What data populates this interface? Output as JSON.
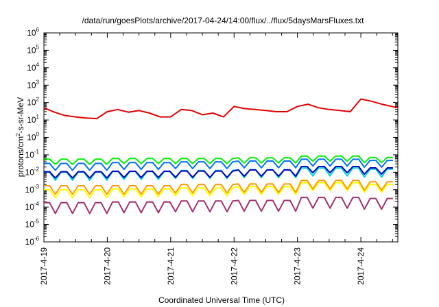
{
  "chart_data": {
    "type": "line",
    "title": "/data/run/goesPlots/archive/2017-04-24/14:00/flux/../flux/5daysMarsFluxes.txt",
    "xlabel": "Coordinated Universal Time (UTC)",
    "ylabel": {
      "prefix": "protons/cm",
      "sup": "2",
      "suffix": "-s-sr-MeV"
    },
    "yscale": "log",
    "ylim": [
      1e-06,
      1000000.0
    ],
    "xlim": [
      "2017-04-19 00:00",
      "2017-04-24 14:00"
    ],
    "x_ticks": [
      "2017-4-19",
      "2017-4-20",
      "2017-4-21",
      "2017-4-22",
      "2017-4-23",
      "2017-4-24"
    ],
    "y_ticks": [
      {
        "base": "10",
        "exp": "-6"
      },
      {
        "base": "10",
        "exp": "-5"
      },
      {
        "base": "10",
        "exp": "-4"
      },
      {
        "base": "10",
        "exp": "-3"
      },
      {
        "base": "10",
        "exp": "-2"
      },
      {
        "base": "10",
        "exp": "-1"
      },
      {
        "base": "10",
        "exp": "0"
      },
      {
        "base": "10",
        "exp": "1"
      },
      {
        "base": "10",
        "exp": "2"
      },
      {
        "base": "10",
        "exp": "3"
      },
      {
        "base": "10",
        "exp": "4"
      },
      {
        "base": "10",
        "exp": "5"
      },
      {
        "base": "10",
        "exp": "6"
      }
    ],
    "grid": false,
    "series": [
      {
        "color": "#e00000",
        "x": [
          "2017-04-19 00:00",
          "2017-04-19 04:00",
          "2017-04-19 08:00",
          "2017-04-19 12:00",
          "2017-04-19 16:00",
          "2017-04-19 20:00",
          "2017-04-20 00:00",
          "2017-04-20 04:00",
          "2017-04-20 08:00",
          "2017-04-20 12:00",
          "2017-04-20 16:00",
          "2017-04-20 20:00",
          "2017-04-21 00:00",
          "2017-04-21 04:00",
          "2017-04-21 08:00",
          "2017-04-21 12:00",
          "2017-04-21 16:00",
          "2017-04-21 20:00",
          "2017-04-22 00:00",
          "2017-04-22 04:00",
          "2017-04-22 08:00",
          "2017-04-22 12:00",
          "2017-04-22 16:00",
          "2017-04-22 20:00",
          "2017-04-23 00:00",
          "2017-04-23 04:00",
          "2017-04-23 08:00",
          "2017-04-23 12:00",
          "2017-04-23 16:00",
          "2017-04-23 20:00",
          "2017-04-24 00:00",
          "2017-04-24 04:00",
          "2017-04-24 08:00",
          "2017-04-24 14:00"
        ],
        "values": [
          50,
          28,
          18,
          15,
          13,
          12,
          30,
          40,
          28,
          35,
          25,
          15,
          15,
          40,
          35,
          20,
          25,
          15,
          60,
          45,
          40,
          35,
          30,
          30,
          60,
          80,
          50,
          40,
          35,
          30,
          160,
          120,
          80,
          50
        ]
      },
      {
        "color": "#00ee00",
        "amp": 0.45,
        "level": [
          0.02,
          0.022,
          0.022,
          0.024,
          0.03,
          0.025
        ]
      },
      {
        "color": "#0070ff",
        "amp": 0.6,
        "level": [
          0.008,
          0.009,
          0.01,
          0.011,
          0.014,
          0.012
        ]
      },
      {
        "color": "#00d0d0",
        "amp": 0.7,
        "level": [
          0.002,
          0.0022,
          0.0025,
          0.0028,
          0.0035,
          0.003
        ]
      },
      {
        "color": "#0000c0",
        "amp": 0.55,
        "level": [
          0.003,
          0.0032,
          0.0033,
          0.0038,
          0.006,
          0.005
        ]
      },
      {
        "color": "#ffff00",
        "amp": 0.7,
        "level": [
          0.0002,
          0.00022,
          0.00025,
          0.0003,
          0.0005,
          0.0004
        ]
      },
      {
        "color": "#ff9900",
        "amp": 0.75,
        "level": [
          0.0003,
          0.0003,
          0.00035,
          0.00038,
          0.0006,
          0.0005
        ]
      },
      {
        "color": "#a03070",
        "amp": 0.95,
        "level": [
          2e-05,
          2.2e-05,
          2.5e-05,
          2.7e-05,
          4e-05,
          3.5e-05
        ]
      }
    ]
  }
}
